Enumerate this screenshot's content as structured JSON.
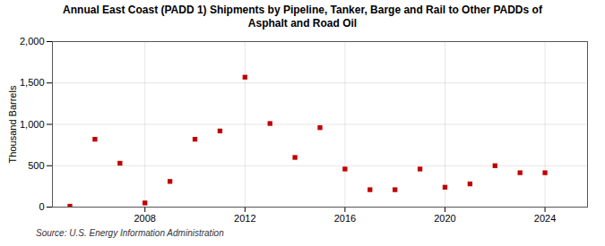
{
  "chart_data": {
    "type": "scatter",
    "title": "Annual East Coast (PADD 1) Shipments by Pipeline, Tanker, Barge and Rail to Other PADDs of\nAsphalt and Road Oil",
    "ylabel": "Thousand Barrels",
    "annotation": "Source: U.S. Energy Information Administration",
    "x": [
      2005,
      2006,
      2007,
      2008,
      2009,
      2010,
      2011,
      2012,
      2013,
      2014,
      2015,
      2016,
      2017,
      2018,
      2019,
      2020,
      2021,
      2022,
      2023,
      2024
    ],
    "values": [
      10,
      820,
      530,
      50,
      310,
      820,
      920,
      1570,
      1010,
      600,
      960,
      460,
      210,
      210,
      460,
      240,
      280,
      500,
      415,
      415
    ],
    "color": "#c00000",
    "marker": "square",
    "xlim": [
      2004.3,
      2025.7
    ],
    "xticks": [
      2008,
      2012,
      2016,
      2020,
      2024
    ],
    "ylim": [
      0,
      2000
    ],
    "yticks": [
      0,
      500,
      {
        "value": 1000,
        "label": "1,000"
      },
      {
        "value": 1500,
        "label": "1,500"
      },
      {
        "value": 2000,
        "label": "2,000"
      }
    ],
    "grid": true
  }
}
